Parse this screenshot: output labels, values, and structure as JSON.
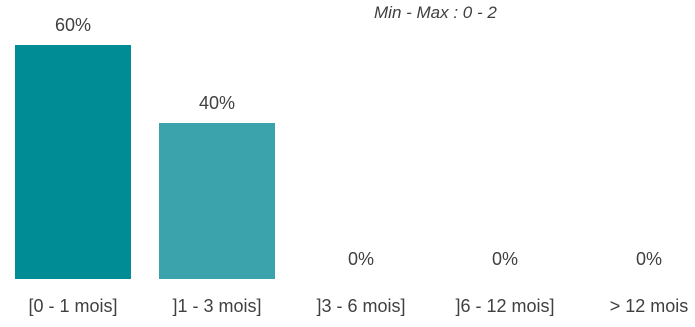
{
  "chart_data": {
    "type": "bar",
    "categories": [
      "[0 - 1 mois]",
      "]1 - 3 mois]",
      "]3 - 6 mois]",
      "]6 - 12 mois]",
      "> 12 mois"
    ],
    "values": [
      60,
      40,
      0,
      0,
      0
    ],
    "value_labels": [
      "60%",
      "40%",
      "0%",
      "0%",
      "0%"
    ],
    "annotation": "Min - Max : 0 - 2",
    "ylim": [
      0,
      60
    ],
    "grid": false,
    "legend": "none",
    "colors": [
      "#008C95",
      "#3AA3AB",
      "#3AA3AB",
      "#3AA3AB",
      "#3AA3AB"
    ],
    "label_color": "#404040"
  }
}
